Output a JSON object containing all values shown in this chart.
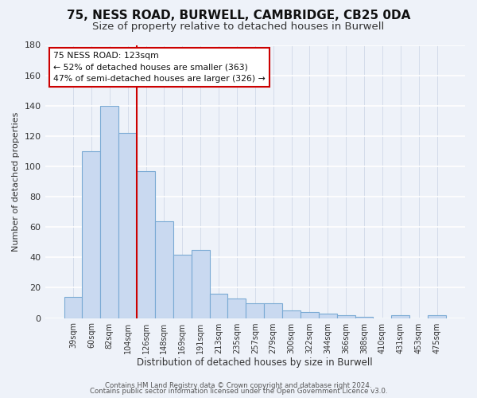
{
  "title": "75, NESS ROAD, BURWELL, CAMBRIDGE, CB25 0DA",
  "subtitle": "Size of property relative to detached houses in Burwell",
  "xlabel": "Distribution of detached houses by size in Burwell",
  "ylabel": "Number of detached properties",
  "bar_labels": [
    "39sqm",
    "60sqm",
    "82sqm",
    "104sqm",
    "126sqm",
    "148sqm",
    "169sqm",
    "191sqm",
    "213sqm",
    "235sqm",
    "257sqm",
    "279sqm",
    "300sqm",
    "322sqm",
    "344sqm",
    "366sqm",
    "388sqm",
    "410sqm",
    "431sqm",
    "453sqm",
    "475sqm"
  ],
  "bar_values": [
    14,
    110,
    140,
    122,
    97,
    64,
    42,
    45,
    16,
    13,
    10,
    10,
    5,
    4,
    3,
    2,
    1,
    0,
    2,
    0,
    2
  ],
  "bar_color": "#c9d9f0",
  "bar_edgecolor": "#7aaad4",
  "vline_x_index": 3.5,
  "vline_color": "#cc0000",
  "ylim": [
    0,
    180
  ],
  "yticks": [
    0,
    20,
    40,
    60,
    80,
    100,
    120,
    140,
    160,
    180
  ],
  "annotation_title": "75 NESS ROAD: 123sqm",
  "annotation_line1": "← 52% of detached houses are smaller (363)",
  "annotation_line2": "47% of semi-detached houses are larger (326) →",
  "annotation_box_color": "#ffffff",
  "annotation_box_edgecolor": "#cc0000",
  "footer_line1": "Contains HM Land Registry data © Crown copyright and database right 2024.",
  "footer_line2": "Contains public sector information licensed under the Open Government Licence v3.0.",
  "bg_color": "#eef2f9",
  "grid_color": "#d8e0ee",
  "title_fontsize": 11,
  "subtitle_fontsize": 9.5
}
